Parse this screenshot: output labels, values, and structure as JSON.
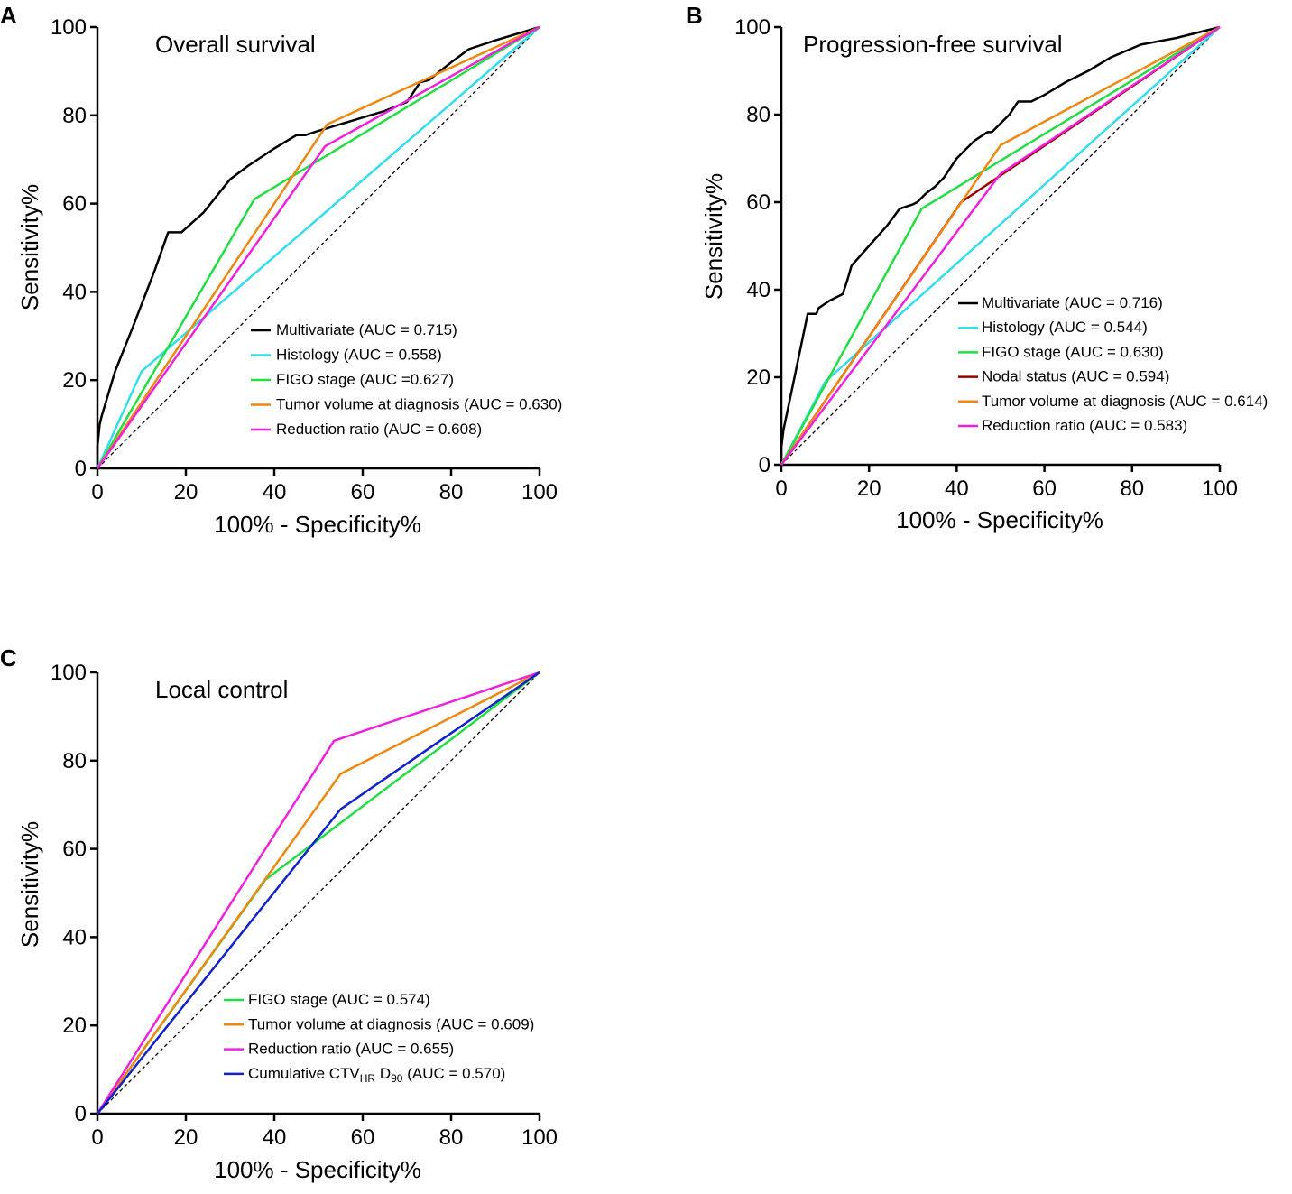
{
  "figure": {
    "panels": [
      "A",
      "B",
      "C"
    ]
  },
  "chart_data": [
    {
      "panel": "A",
      "type": "line",
      "title": "Overall survival",
      "xlabel": "100% - Specificity%",
      "ylabel": "Sensitivity%",
      "xlim": [
        0,
        100
      ],
      "ylim": [
        0,
        100
      ],
      "xticks": [
        "0",
        "20",
        "40",
        "60",
        "80",
        "100"
      ],
      "yticks": [
        "0",
        "20",
        "40",
        "60",
        "80",
        "100"
      ],
      "reference_line": {
        "x": [
          0,
          100
        ],
        "y": [
          0,
          100
        ],
        "style": "dashed"
      },
      "legend_position": "lower-right",
      "series": [
        {
          "name": "Multivariate",
          "label": "Multivariate (AUC = 0.715)",
          "color": "#000000",
          "points": [
            [
              0,
              0
            ],
            [
              0,
              5
            ],
            [
              0.5,
              10
            ],
            [
              1,
              12
            ],
            [
              4,
              22
            ],
            [
              8,
              32
            ],
            [
              13,
              45
            ],
            [
              16,
              53.5
            ],
            [
              19,
              53.5
            ],
            [
              24,
              58
            ],
            [
              30,
              65.5
            ],
            [
              34,
              68.5
            ],
            [
              40,
              72.5
            ],
            [
              45,
              75.5
            ],
            [
              47,
              75.5
            ],
            [
              50,
              76.5
            ],
            [
              55,
              78
            ],
            [
              60,
              79.5
            ],
            [
              65,
              81
            ],
            [
              70,
              83
            ],
            [
              73,
              87.5
            ],
            [
              75,
              88
            ],
            [
              80,
              92
            ],
            [
              84,
              95
            ],
            [
              90,
              97
            ],
            [
              100,
              100
            ]
          ]
        },
        {
          "name": "Histology",
          "label": "Histology (AUC = 0.558)",
          "color": "#33DDEE",
          "points": [
            [
              0,
              0
            ],
            [
              10,
              22
            ],
            [
              100,
              100
            ]
          ]
        },
        {
          "name": "FIGO stage",
          "label": "FIGO stage (AUC =0.627)",
          "color": "#22DD44",
          "points": [
            [
              0,
              0
            ],
            [
              35.5,
              61
            ],
            [
              100,
              100
            ]
          ]
        },
        {
          "name": "Tumor volume at diagnosis",
          "label": "Tumor volume at diagnosis (AUC = 0.630)",
          "color": "#EE8811",
          "points": [
            [
              0,
              0
            ],
            [
              52,
              78
            ],
            [
              100,
              100
            ]
          ]
        },
        {
          "name": "Reduction ratio",
          "label": "Reduction ratio (AUC = 0.608)",
          "color": "#EE22DD",
          "points": [
            [
              0,
              0
            ],
            [
              51.5,
              73
            ],
            [
              100,
              100
            ]
          ]
        }
      ]
    },
    {
      "panel": "B",
      "type": "line",
      "title": "Progression-free survival",
      "xlabel": "100% - Specificity%",
      "ylabel": "Sensitivity%",
      "xlim": [
        0,
        100
      ],
      "ylim": [
        0,
        100
      ],
      "xticks": [
        "0",
        "20",
        "40",
        "60",
        "80",
        "100"
      ],
      "yticks": [
        "0",
        "20",
        "40",
        "60",
        "80",
        "100"
      ],
      "reference_line": {
        "x": [
          0,
          100
        ],
        "y": [
          0,
          100
        ],
        "style": "dashed"
      },
      "legend_position": "lower-right",
      "series": [
        {
          "name": "Multivariate",
          "label": "Multivariate (AUC = 0.716)",
          "color": "#000000",
          "points": [
            [
              0,
              0
            ],
            [
              0,
              4
            ],
            [
              0.5,
              8
            ],
            [
              3,
              20
            ],
            [
              6,
              34.5
            ],
            [
              8,
              34.5
            ],
            [
              8.5,
              35.8
            ],
            [
              11,
              37.5
            ],
            [
              14,
              39
            ],
            [
              15,
              42
            ],
            [
              16,
              45.5
            ],
            [
              20,
              50
            ],
            [
              24,
              54.5
            ],
            [
              27,
              58.5
            ],
            [
              30,
              59.5
            ],
            [
              31,
              60
            ],
            [
              33,
              62
            ],
            [
              35,
              63.5
            ],
            [
              37,
              65.5
            ],
            [
              40,
              70
            ],
            [
              42,
              72
            ],
            [
              44,
              74
            ],
            [
              47,
              76
            ],
            [
              48,
              76
            ],
            [
              50,
              78
            ],
            [
              52,
              80
            ],
            [
              54,
              83
            ],
            [
              57,
              83
            ],
            [
              60,
              84.5
            ],
            [
              65,
              87.5
            ],
            [
              70,
              90
            ],
            [
              75,
              93
            ],
            [
              82,
              96
            ],
            [
              90,
              97.5
            ],
            [
              100,
              100
            ]
          ]
        },
        {
          "name": "Histology",
          "label": "Histology (AUC = 0.544)",
          "color": "#33DDEE",
          "points": [
            [
              0,
              0
            ],
            [
              10,
              19
            ],
            [
              100,
              100
            ]
          ]
        },
        {
          "name": "FIGO stage",
          "label": "FIGO stage (AUC = 0.630)",
          "color": "#22DD44",
          "points": [
            [
              0,
              0
            ],
            [
              32,
              58.5
            ],
            [
              100,
              100
            ]
          ]
        },
        {
          "name": "Nodal status",
          "label": "Nodal status (AUC = 0.594)",
          "color": "#990000",
          "points": [
            [
              0,
              0
            ],
            [
              41,
              60
            ],
            [
              100,
              100
            ]
          ]
        },
        {
          "name": "Tumor volume at diagnosis",
          "label": "Tumor volume at diagnosis (AUC = 0.614)",
          "color": "#EE8811",
          "points": [
            [
              0,
              0
            ],
            [
              50,
              73
            ],
            [
              100,
              100
            ]
          ]
        },
        {
          "name": "Reduction ratio",
          "label": "Reduction ratio (AUC = 0.583)",
          "color": "#EE22DD",
          "points": [
            [
              0,
              0
            ],
            [
              50,
              66.5
            ],
            [
              100,
              100
            ]
          ]
        }
      ]
    },
    {
      "panel": "C",
      "type": "line",
      "title": "Local control",
      "xlabel": "100% - Specificity%",
      "ylabel": "Sensitivity%",
      "xlim": [
        0,
        100
      ],
      "ylim": [
        0,
        100
      ],
      "xticks": [
        "0",
        "20",
        "40",
        "60",
        "80",
        "100"
      ],
      "yticks": [
        "0",
        "20",
        "40",
        "60",
        "80",
        "100"
      ],
      "reference_line": {
        "x": [
          0,
          100
        ],
        "y": [
          0,
          100
        ],
        "style": "dashed"
      },
      "legend_position": "lower-right",
      "series": [
        {
          "name": "FIGO stage",
          "label": "FIGO stage (AUC = 0.574)",
          "color": "#22DD44",
          "points": [
            [
              0,
              0
            ],
            [
              38,
              53
            ],
            [
              100,
              100
            ]
          ]
        },
        {
          "name": "Tumor volume at diagnosis",
          "label": "Tumor volume at diagnosis (AUC = 0.609)",
          "color": "#EE8811",
          "points": [
            [
              0,
              0
            ],
            [
              55,
              77
            ],
            [
              100,
              100
            ]
          ]
        },
        {
          "name": "Reduction ratio",
          "label": "Reduction ratio (AUC = 0.655)",
          "color": "#EE22DD",
          "points": [
            [
              0,
              0
            ],
            [
              53.5,
              84.5
            ],
            [
              100,
              100
            ]
          ]
        },
        {
          "name": "Cumulative CTVHR D90",
          "label": "Cumulative CTV",
          "label_sub1": "HR",
          "label_mid": " D",
          "label_sub2": "90",
          "label_tail": " (AUC = 0.570)",
          "color": "#1122CC",
          "points": [
            [
              0,
              0
            ],
            [
              55,
              69
            ],
            [
              100,
              100
            ]
          ]
        }
      ]
    }
  ]
}
